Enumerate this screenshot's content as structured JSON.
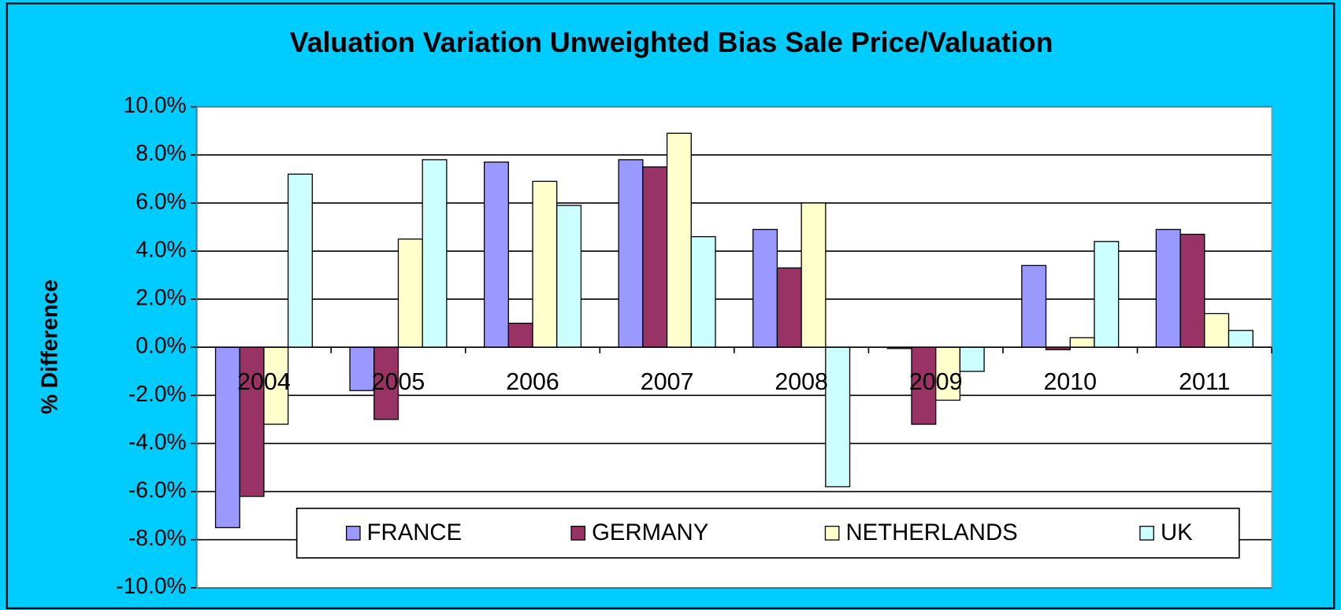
{
  "chart_data": {
    "type": "bar",
    "title": "Valuation Variation Unweighted Bias Sale Price/Valuation",
    "y_label": "% Difference",
    "categories": [
      "2004",
      "2005",
      "2006",
      "2007",
      "2008",
      "2009",
      "2010",
      "2011"
    ],
    "series": [
      {
        "name": "FRANCE",
        "color": "#9999ff",
        "values": [
          -7.5,
          -1.8,
          7.7,
          7.8,
          4.9,
          -0.05,
          3.4,
          4.9
        ]
      },
      {
        "name": "GERMANY",
        "color": "#993366",
        "values": [
          -6.2,
          -3.0,
          1.0,
          7.5,
          3.3,
          -3.2,
          -0.1,
          4.7
        ]
      },
      {
        "name": "NETHERLANDS",
        "color": "#ffffcc",
        "values": [
          -3.2,
          4.5,
          6.9,
          8.9,
          6.0,
          -2.2,
          0.4,
          1.4
        ]
      },
      {
        "name": "UK",
        "color": "#ccffff",
        "values": [
          7.2,
          7.8,
          5.9,
          4.6,
          -5.8,
          -1.0,
          4.4,
          0.7
        ]
      }
    ],
    "ylim": [
      -10,
      10
    ],
    "yticks": [
      {
        "value": -10,
        "label": "-10.0%"
      },
      {
        "value": -8,
        "label": "-8.0%"
      },
      {
        "value": -6,
        "label": "-6.0%"
      },
      {
        "value": -4,
        "label": "-4.0%"
      },
      {
        "value": -2,
        "label": "-2.0%"
      },
      {
        "value": 0,
        "label": "0.0%"
      },
      {
        "value": 2,
        "label": "2.0%"
      },
      {
        "value": 4,
        "label": "4.0%"
      },
      {
        "value": 6,
        "label": "6.0%"
      },
      {
        "value": 8,
        "label": "8.0%"
      },
      {
        "value": 10,
        "label": "10.0%"
      }
    ],
    "grid": true,
    "legend_position": "bottom"
  }
}
